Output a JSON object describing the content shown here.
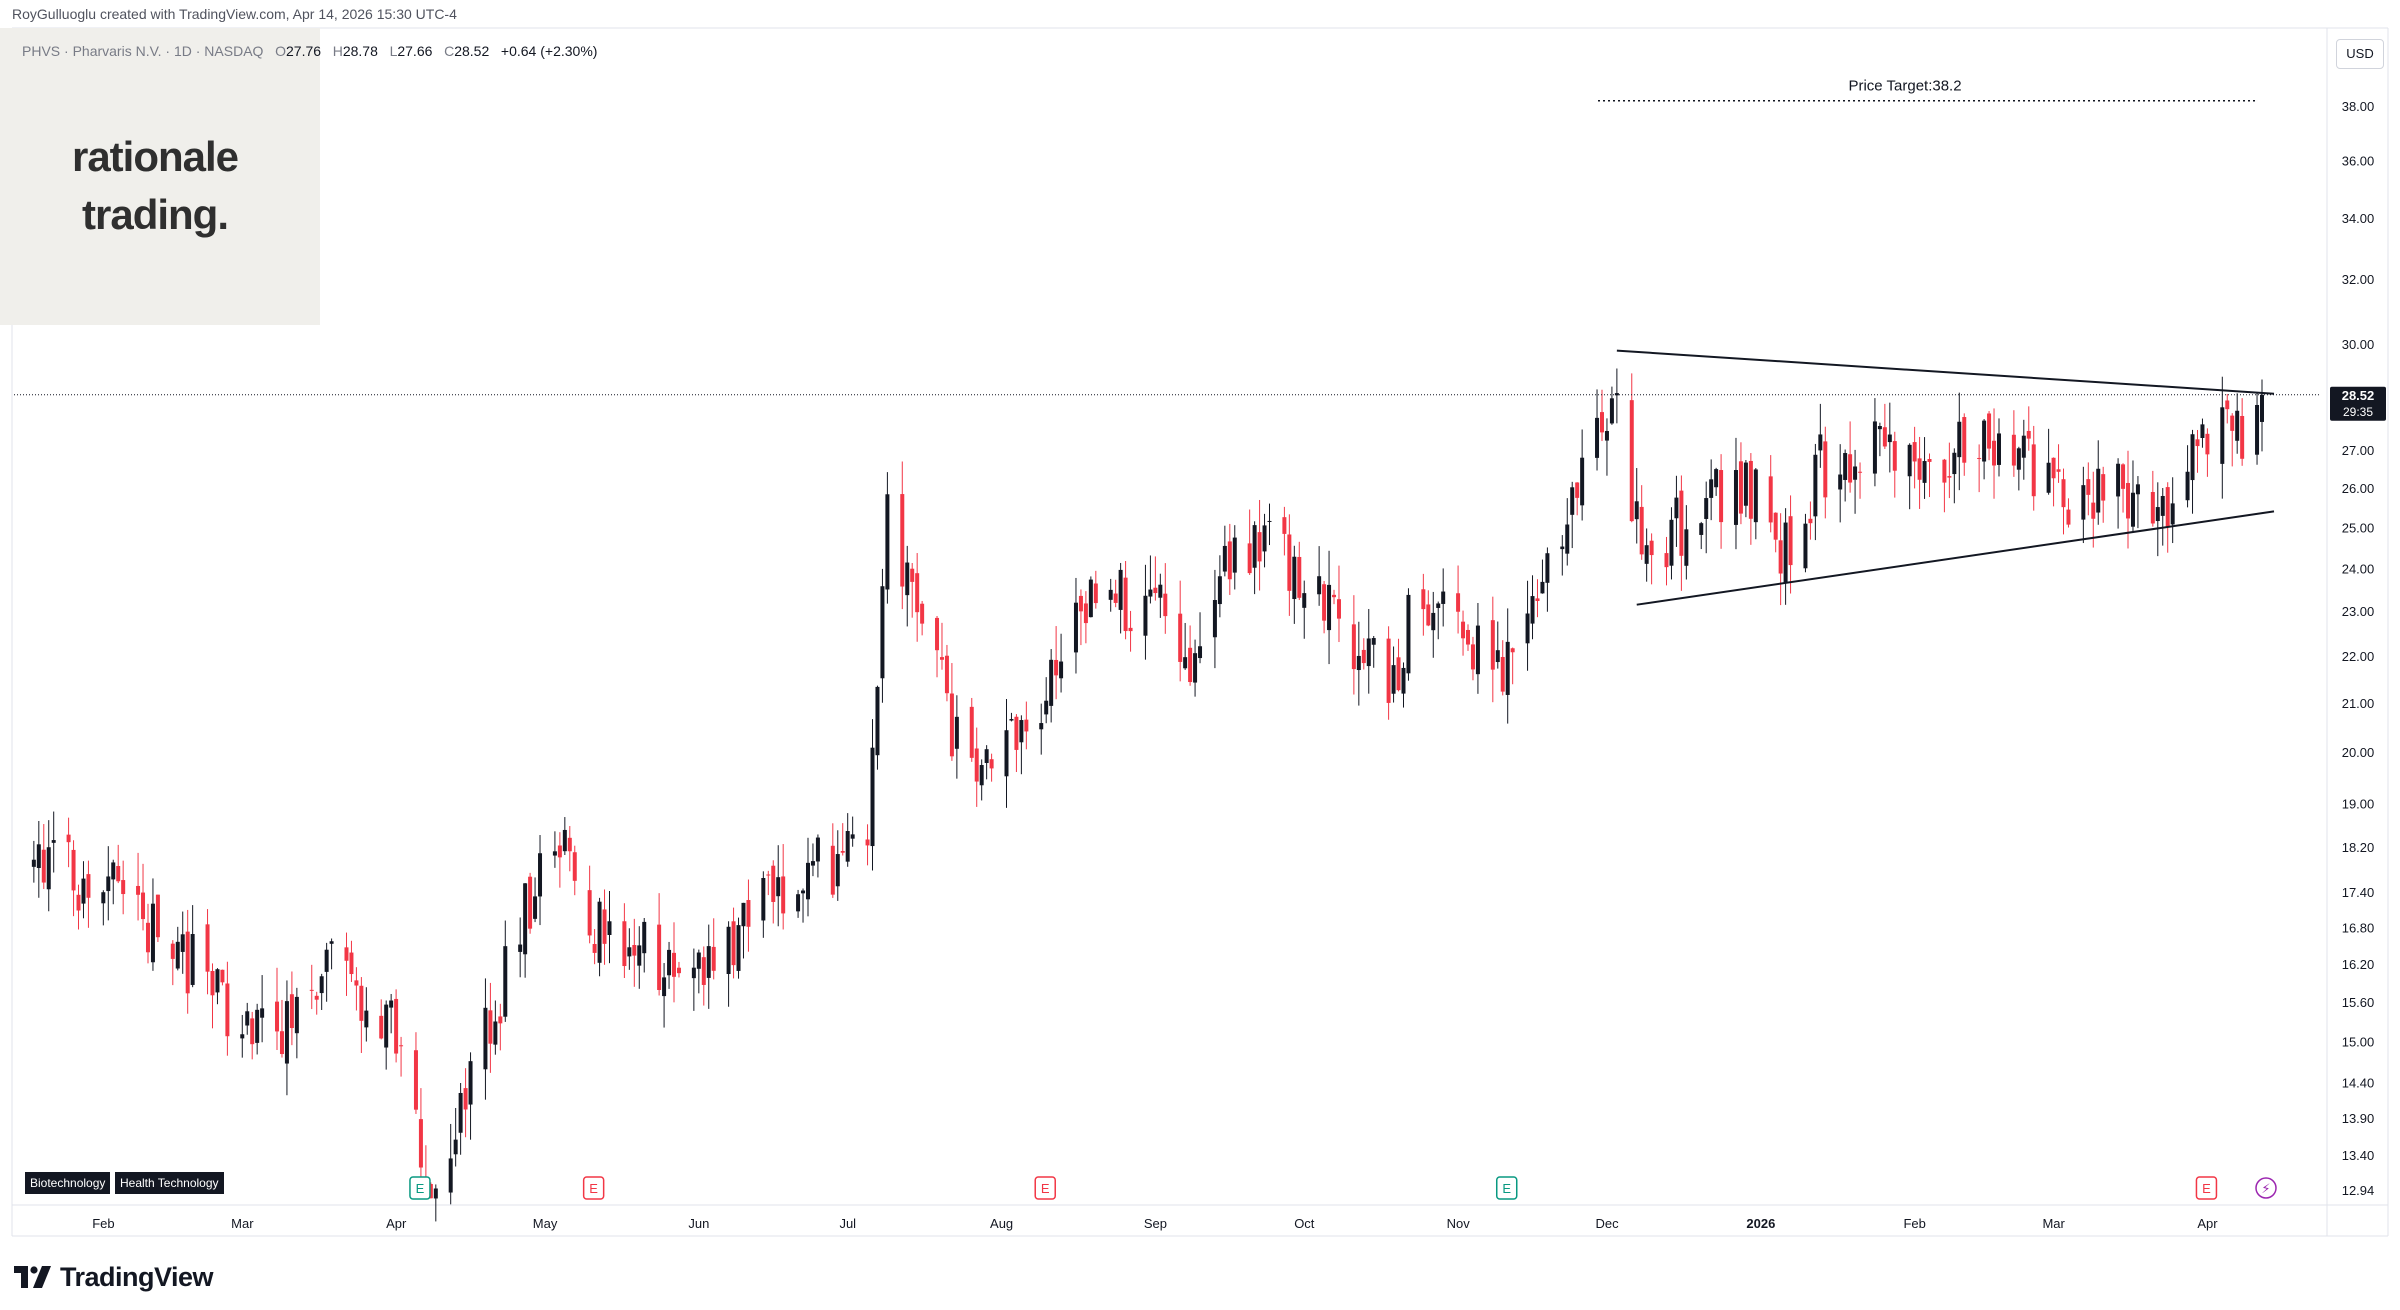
{
  "header": {
    "credit": "RoyGulluoglu created with TradingView.com, Apr 14, 2026 15:30 UTC-4",
    "symbol_line": "PHVS · Pharvaris N.V. · 1D · NASDAQ",
    "open_label": "O",
    "open": "27.76",
    "high_label": "H",
    "high": "28.78",
    "low_label": "L",
    "low": "27.66",
    "close_label": "C",
    "close": "28.52",
    "change": "+0.64 (+2.30%)"
  },
  "logo": {
    "line1": "rationale",
    "line2": "trading."
  },
  "sector_badges": [
    "Biotechnology",
    "Health Technology"
  ],
  "currency_button": "USD",
  "footer": {
    "brand": "TradingView"
  },
  "colors": {
    "up": "#131722",
    "down": "#f23645",
    "earnings": "#089981",
    "earnings_alt": "#f23645",
    "dividend": "#9c27b0"
  },
  "chart_data": {
    "type": "candlestick",
    "symbol": "PHVS",
    "interval": "1D",
    "y_scale": "log",
    "ylim": [
      12.7,
      40.4
    ],
    "y_ticks": [
      "38.00",
      "36.00",
      "34.00",
      "32.00",
      "30.00",
      "27.00",
      "26.00",
      "25.00",
      "24.00",
      "23.00",
      "22.00",
      "21.00",
      "20.00",
      "19.00",
      "18.20",
      "17.40",
      "16.80",
      "16.20",
      "15.60",
      "15.00",
      "14.40",
      "13.90",
      "13.40",
      "12.94"
    ],
    "x_ticks": [
      {
        "label": "Feb",
        "date": "2025-02-01"
      },
      {
        "label": "Mar",
        "date": "2025-03-01"
      },
      {
        "label": "Apr",
        "date": "2025-04-01"
      },
      {
        "label": "May",
        "date": "2025-05-01"
      },
      {
        "label": "Jun",
        "date": "2025-06-01"
      },
      {
        "label": "Jul",
        "date": "2025-07-01"
      },
      {
        "label": "Aug",
        "date": "2025-08-01"
      },
      {
        "label": "Sep",
        "date": "2025-09-01"
      },
      {
        "label": "Oct",
        "date": "2025-10-01"
      },
      {
        "label": "Nov",
        "date": "2025-11-01"
      },
      {
        "label": "Dec",
        "date": "2025-12-01"
      },
      {
        "label": "2026",
        "date": "2026-01-01"
      },
      {
        "label": "Feb",
        "date": "2026-02-01"
      },
      {
        "label": "Mar",
        "date": "2026-03-01"
      },
      {
        "label": "Apr",
        "date": "2026-04-01"
      }
    ],
    "last_price": {
      "value": 28.52,
      "label": "28.52",
      "countdown": "29:35"
    },
    "annotations": {
      "price_target": {
        "label": "Price Target:38.2",
        "value": 38.2
      },
      "triangle_upper": [
        {
          "date": "2025-12-05",
          "price": 29.8
        },
        {
          "date": "2026-04-14",
          "price": 28.55
        }
      ],
      "triangle_lower": [
        {
          "date": "2025-12-09",
          "price": 23.15
        },
        {
          "date": "2026-04-14",
          "price": 25.4
        }
      ]
    },
    "event_markers": [
      {
        "type": "earnings",
        "label": "E",
        "date": "2025-04-07",
        "style": "earnings"
      },
      {
        "type": "earnings",
        "label": "E",
        "date": "2025-05-12",
        "style": "earnings_alt"
      },
      {
        "type": "earnings",
        "label": "E",
        "date": "2025-08-11",
        "style": "earnings_alt"
      },
      {
        "type": "earnings",
        "label": "E",
        "date": "2025-11-12",
        "style": "earnings"
      },
      {
        "type": "earnings",
        "label": "E",
        "date": "2026-04-02",
        "style": "earnings_alt"
      },
      {
        "type": "dividend",
        "label": "⚡",
        "date": "2026-04-14",
        "style": "dividend"
      }
    ],
    "price_path": [
      [
        "2025-01-20",
        18.0
      ],
      [
        "2025-02-01",
        17.6
      ],
      [
        "2025-02-10",
        17.0
      ],
      [
        "2025-02-20",
        16.3
      ],
      [
        "2025-03-01",
        15.4
      ],
      [
        "2025-03-10",
        15.2
      ],
      [
        "2025-03-20",
        16.2
      ],
      [
        "2025-04-01",
        15.4
      ],
      [
        "2025-04-07",
        13.6
      ],
      [
        "2025-04-10",
        12.9
      ],
      [
        "2025-04-18",
        14.3
      ],
      [
        "2025-04-28",
        16.7
      ],
      [
        "2025-05-05",
        18.6
      ],
      [
        "2025-05-12",
        16.8
      ],
      [
        "2025-05-20",
        16.6
      ],
      [
        "2025-06-01",
        16.0
      ],
      [
        "2025-06-10",
        16.6
      ],
      [
        "2025-06-20",
        17.6
      ],
      [
        "2025-06-30",
        17.9
      ],
      [
        "2025-07-07",
        18.4
      ],
      [
        "2025-07-11",
        25.0
      ],
      [
        "2025-07-18",
        22.8
      ],
      [
        "2025-07-25",
        20.2
      ],
      [
        "2025-08-01",
        19.8
      ],
      [
        "2025-08-11",
        21.0
      ],
      [
        "2025-08-20",
        23.0
      ],
      [
        "2025-09-01",
        23.4
      ],
      [
        "2025-09-10",
        22.0
      ],
      [
        "2025-09-20",
        24.6
      ],
      [
        "2025-09-25",
        24.9
      ],
      [
        "2025-10-01",
        23.6
      ],
      [
        "2025-10-10",
        22.6
      ],
      [
        "2025-10-20",
        21.4
      ],
      [
        "2025-10-27",
        23.6
      ],
      [
        "2025-11-05",
        22.3
      ],
      [
        "2025-11-12",
        21.5
      ],
      [
        "2025-11-17",
        23.2
      ],
      [
        "2025-11-25",
        24.8
      ],
      [
        "2025-12-01",
        27.4
      ],
      [
        "2025-12-05",
        29.0
      ],
      [
        "2025-12-10",
        24.0
      ],
      [
        "2025-12-20",
        25.4
      ],
      [
        "2026-01-01",
        26.0
      ],
      [
        "2026-01-08",
        24.4
      ],
      [
        "2026-01-15",
        26.6
      ],
      [
        "2026-01-25",
        27.4
      ],
      [
        "2026-02-05",
        26.0
      ],
      [
        "2026-02-15",
        27.2
      ],
      [
        "2026-02-25",
        26.8
      ],
      [
        "2026-03-05",
        25.8
      ],
      [
        "2026-03-15",
        26.3
      ],
      [
        "2026-03-25",
        25.5
      ],
      [
        "2026-04-01",
        27.8
      ],
      [
        "2026-04-08",
        27.6
      ],
      [
        "2026-04-13",
        27.9
      ],
      [
        "2026-04-14",
        28.52
      ]
    ]
  }
}
